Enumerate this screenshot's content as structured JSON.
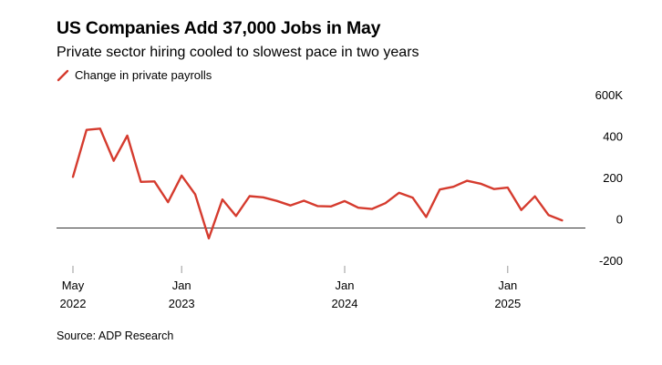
{
  "title": "US Companies Add 37,000 Jobs in May",
  "subtitle": "Private sector hiring cooled to slowest pace in two years",
  "source": "Source: ADP Research",
  "colors": {
    "line": "#d53b2e",
    "zero_line": "#333333",
    "axis": "#999999",
    "text": "#000000"
  },
  "chart_data": {
    "type": "line",
    "legend": "top-left",
    "grid": false,
    "series": [
      {
        "name": "Change in private payrolls",
        "color": "#d53b2e",
        "values": [
          247,
          474,
          480,
          325,
          446,
          223,
          225,
          125,
          253,
          162,
          -50,
          138,
          58,
          154,
          148,
          131,
          109,
          132,
          106,
          104,
          130,
          98,
          92,
          120,
          170,
          147,
          53,
          186,
          199,
          228,
          214,
          188,
          195,
          87,
          153,
          63,
          37
        ]
      }
    ],
    "x": [
      "2022-05",
      "2022-06",
      "2022-07",
      "2022-08",
      "2022-09",
      "2022-10",
      "2022-11",
      "2022-12",
      "2023-01",
      "2023-02",
      "2023-03",
      "2023-04",
      "2023-05",
      "2023-06",
      "2023-07",
      "2023-08",
      "2023-09",
      "2023-10",
      "2023-11",
      "2023-12",
      "2024-01",
      "2024-02",
      "2024-03",
      "2024-04",
      "2024-05",
      "2024-06",
      "2024-07",
      "2024-08",
      "2024-09",
      "2024-10",
      "2024-11",
      "2024-12",
      "2025-01",
      "2025-02",
      "2025-03",
      "2025-04",
      "2025-05"
    ],
    "ylim": [
      -200,
      600
    ],
    "yticks": [
      {
        "value": 600,
        "label": "600K"
      },
      {
        "value": 400,
        "label": "400"
      },
      {
        "value": 200,
        "label": "200"
      },
      {
        "value": 0,
        "label": "0"
      },
      {
        "value": -200,
        "label": "-200"
      }
    ],
    "xticks": [
      {
        "index": 0,
        "label1": "May",
        "label2": "2022"
      },
      {
        "index": 8,
        "label1": "Jan",
        "label2": "2023"
      },
      {
        "index": 20,
        "label1": "Jan",
        "label2": "2024"
      },
      {
        "index": 32,
        "label1": "Jan",
        "label2": "2025"
      }
    ],
    "xlabel": "",
    "ylabel": ""
  }
}
